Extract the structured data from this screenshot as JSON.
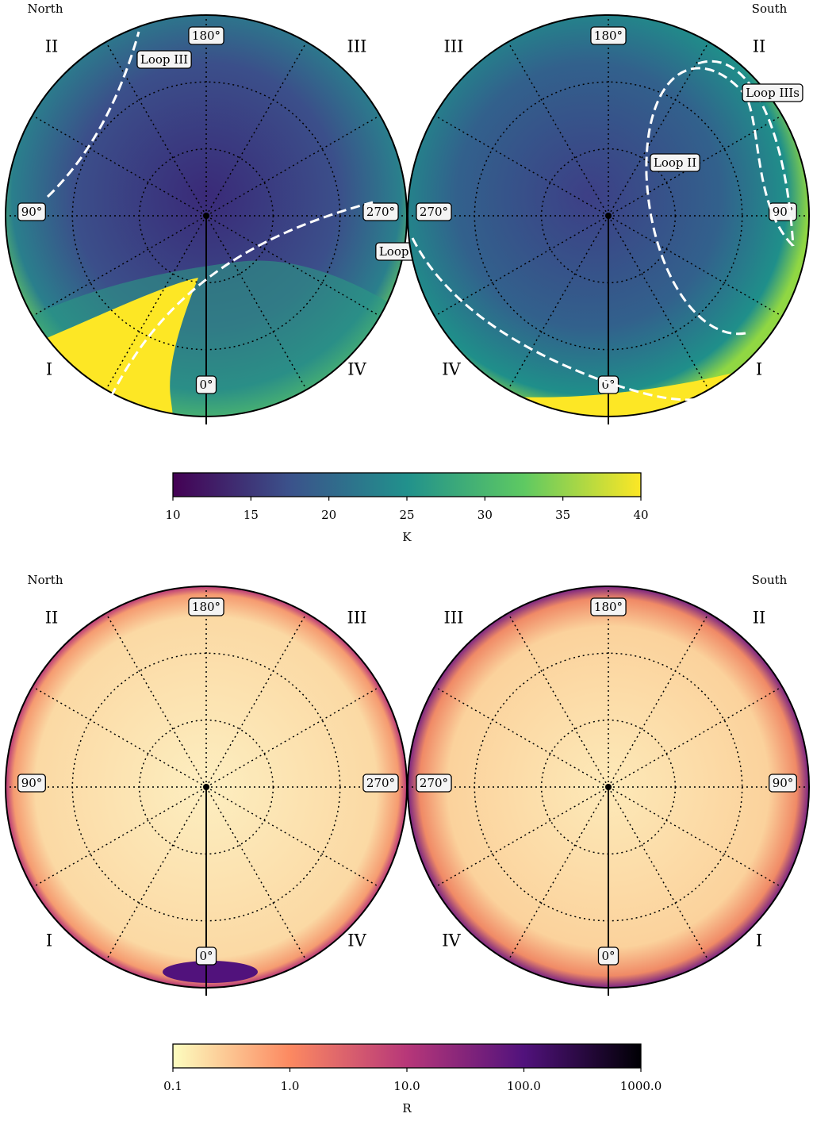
{
  "figures": [
    {
      "panels": [
        {
          "hemisphere": "North",
          "quadrants": [
            "II",
            "III",
            "I",
            "IV"
          ],
          "longitudes": [
            "180°",
            "90°",
            "270°",
            "0°"
          ],
          "loops": [
            "Loop III",
            "Loop I"
          ]
        },
        {
          "hemisphere": "South",
          "quadrants": [
            "III",
            "II",
            "IV",
            "I"
          ],
          "longitudes": [
            "180°",
            "270°",
            "90°",
            "0°"
          ],
          "loops": [
            "Loop II",
            "Loop IIIs"
          ]
        }
      ],
      "colorbar": {
        "label": "K",
        "lim": [
          10,
          40
        ],
        "ticks": [
          10,
          15,
          20,
          25,
          30,
          35,
          40
        ],
        "log": false,
        "colors": [
          "#440154",
          "#3b528b",
          "#21918c",
          "#5ec962",
          "#fde725"
        ]
      }
    },
    {
      "panels": [
        {
          "hemisphere": "North",
          "quadrants": [
            "II",
            "III",
            "I",
            "IV"
          ],
          "longitudes": [
            "180°",
            "90°",
            "270°",
            "0°"
          ],
          "loops": []
        },
        {
          "hemisphere": "South",
          "quadrants": [
            "III",
            "II",
            "IV",
            "I"
          ],
          "longitudes": [
            "180°",
            "270°",
            "90°",
            "0°"
          ],
          "loops": []
        }
      ],
      "colorbar": {
        "label": "R",
        "lim": [
          0.1,
          1000
        ],
        "ticks": [
          0.1,
          {
            "value": 1,
            "label": "1.0"
          },
          {
            "value": 10,
            "label": "10.0"
          },
          {
            "value": 100,
            "label": "100.0"
          },
          {
            "value": 1000,
            "label": "1000.0"
          }
        ],
        "log": true,
        "colors": [
          "#fcfdbf",
          "#fc8961",
          "#b73779",
          "#51127c",
          "#000004"
        ]
      }
    }
  ]
}
